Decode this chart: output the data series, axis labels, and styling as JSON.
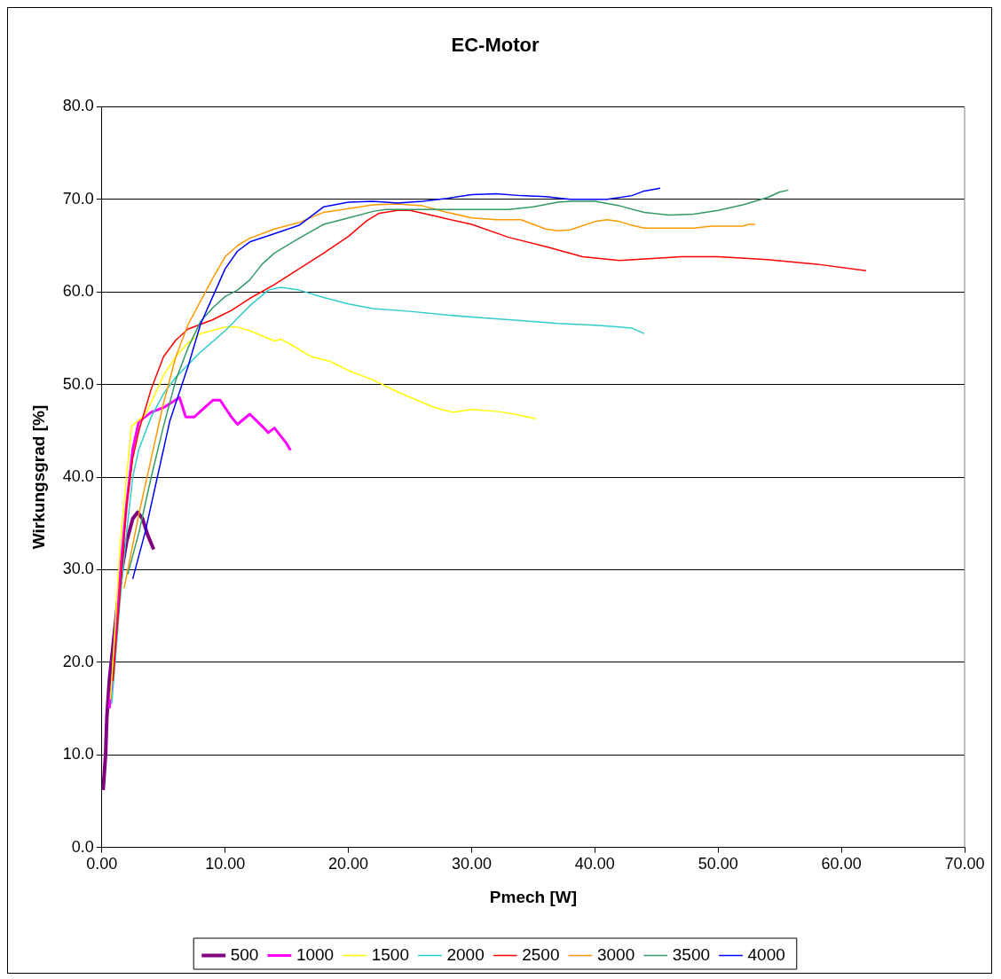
{
  "chart_data": {
    "type": "line",
    "title": "EC-Motor",
    "xlabel": "Pmech [W]",
    "ylabel": "Wirkungsgrad [%]",
    "xlim": [
      0,
      70
    ],
    "xticks": [
      {
        "value": 0,
        "label": "0.00"
      },
      {
        "value": 10,
        "label": "10.00"
      },
      {
        "value": 20,
        "label": "20.00"
      },
      {
        "value": 30,
        "label": "30.00"
      },
      {
        "value": 40,
        "label": "40.00"
      },
      {
        "value": 50,
        "label": "50.00"
      },
      {
        "value": 60,
        "label": "60.00"
      },
      {
        "value": 70,
        "label": "70.00"
      }
    ],
    "ylim": [
      0,
      80
    ],
    "yticks": [
      {
        "value": 0,
        "label": "0.0"
      },
      {
        "value": 10,
        "label": "10.0"
      },
      {
        "value": 20,
        "label": "20.0"
      },
      {
        "value": 30,
        "label": "30.0"
      },
      {
        "value": 40,
        "label": "40.0"
      },
      {
        "value": 50,
        "label": "50.0"
      },
      {
        "value": 60,
        "label": "60.0"
      },
      {
        "value": 70,
        "label": "70.0"
      },
      {
        "value": 80,
        "label": "80.0"
      }
    ],
    "grid": "y",
    "legend": "bottom",
    "marker": "none",
    "line_style": "solid",
    "series": [
      {
        "name": "500",
        "color": "#800080",
        "x": [
          0.1,
          0.3,
          0.4,
          0.6,
          1.0,
          1.5,
          2.0,
          2.5,
          2.9,
          3.3,
          3.7,
          4.2
        ],
        "values": [
          6.2,
          10,
          14,
          18,
          23,
          29,
          33,
          35.5,
          36.2,
          35.5,
          33.8,
          32.2
        ]
      },
      {
        "name": "1000",
        "color": "#ff00ff",
        "x": [
          0.6,
          1,
          1.5,
          2,
          2.5,
          3,
          4,
          5,
          6.3,
          6.8,
          7.5,
          9,
          9.6,
          10.5,
          11,
          12,
          13,
          13.5,
          14,
          15,
          15.3
        ],
        "values": [
          15,
          20,
          30,
          37,
          43,
          46,
          47,
          47.5,
          48.6,
          46.5,
          46.5,
          48.3,
          48.3,
          46.5,
          45.7,
          46.8,
          45.5,
          44.8,
          45.3,
          43.6,
          42.9
        ]
      },
      {
        "name": "1500",
        "color": "#ffff00",
        "x": [
          0.7,
          1.5,
          2.0,
          2.4,
          3.5,
          4.5,
          5,
          6,
          7,
          8,
          10,
          11,
          12,
          14,
          14.5,
          15.5,
          17,
          18.5,
          20,
          22,
          24,
          27,
          28.5,
          30,
          32,
          33.5,
          35.2
        ],
        "values": [
          16,
          33,
          40,
          45.5,
          46.7,
          49.5,
          51,
          53,
          54.5,
          55.5,
          56.2,
          56.2,
          55.8,
          54.7,
          54.9,
          54.2,
          53,
          52.5,
          51.5,
          50.5,
          49.2,
          47.5,
          47,
          47.3,
          47.1,
          46.8,
          46.3
        ]
      },
      {
        "name": "2000",
        "color": "#33cccc",
        "x": [
          0.8,
          1.5,
          2,
          2.5,
          3,
          4,
          5,
          6,
          8,
          10,
          12,
          13.5,
          14.5,
          16,
          18,
          20,
          22,
          25,
          28,
          31,
          34,
          37,
          40,
          42,
          43,
          44
        ],
        "values": [
          15.5,
          27,
          34,
          40,
          43,
          46.5,
          49,
          50.8,
          53.5,
          55.8,
          58.5,
          60.2,
          60.5,
          60.2,
          59.4,
          58.7,
          58.2,
          57.9,
          57.5,
          57.2,
          56.9,
          56.6,
          56.4,
          56.2,
          56.1,
          55.5
        ]
      },
      {
        "name": "2500",
        "color": "#ff0000",
        "x": [
          0.9,
          1.5,
          2,
          2.5,
          3,
          4,
          5,
          6,
          7,
          8,
          9,
          10.5,
          12,
          14,
          16,
          18,
          20,
          21.5,
          22.5,
          24,
          25,
          27,
          30,
          33,
          36,
          39,
          42,
          47,
          50,
          54,
          58,
          62
        ],
        "values": [
          18,
          28,
          37,
          42,
          45,
          49.5,
          53,
          54.8,
          56,
          56.5,
          57,
          58,
          59.3,
          60.8,
          62.5,
          64.2,
          66,
          67.7,
          68.5,
          68.8,
          68.8,
          68.2,
          67.3,
          65.9,
          64.9,
          63.8,
          63.4,
          63.8,
          63.8,
          63.5,
          63,
          62.3
        ]
      },
      {
        "name": "3000",
        "color": "#ff9900",
        "x": [
          1.8,
          3,
          4,
          5,
          6,
          7,
          8,
          9,
          10,
          11,
          12,
          14,
          16,
          18,
          20,
          22,
          24,
          26,
          28,
          30,
          32,
          34,
          35,
          36,
          37,
          38,
          40,
          41,
          42,
          43,
          44,
          48,
          49.5,
          52,
          52.5,
          53
        ],
        "values": [
          28,
          36,
          42,
          48,
          53,
          56.5,
          59,
          61.5,
          63.8,
          65,
          65.8,
          66.8,
          67.5,
          68.6,
          69,
          69.4,
          69.5,
          69.3,
          68.6,
          68,
          67.8,
          67.8,
          67.3,
          66.8,
          66.6,
          66.7,
          67.6,
          67.8,
          67.6,
          67.2,
          66.9,
          66.9,
          67.1,
          67.1,
          67.3,
          67.3
        ]
      },
      {
        "name": "3500",
        "color": "#339966",
        "x": [
          2.1,
          3,
          4,
          5,
          6,
          7,
          8,
          9,
          10,
          11,
          12,
          13,
          14,
          16,
          18,
          20,
          22,
          23,
          25,
          30,
          33,
          35,
          37,
          38,
          40,
          42,
          44,
          46,
          48,
          50,
          52,
          54,
          55,
          55.7
        ],
        "values": [
          29.5,
          34,
          40,
          45.5,
          50.5,
          54,
          56.8,
          58.3,
          59.5,
          60.2,
          61.3,
          63,
          64.2,
          65.8,
          67.3,
          68,
          68.7,
          68.9,
          68.9,
          68.9,
          68.9,
          69.2,
          69.7,
          69.8,
          69.8,
          69.3,
          68.6,
          68.3,
          68.4,
          68.8,
          69.4,
          70.2,
          70.8,
          71
        ]
      },
      {
        "name": "4000",
        "color": "#0000ff",
        "x": [
          2.5,
          3.5,
          4.5,
          5.5,
          7,
          8,
          9,
          10,
          11,
          12,
          14,
          16,
          18,
          20,
          22,
          24,
          26,
          28,
          30,
          32,
          34,
          36,
          38,
          41,
          43,
          44,
          45.3
        ],
        "values": [
          29,
          34,
          40,
          46,
          52,
          56.5,
          59.5,
          62.5,
          64.4,
          65.4,
          66.3,
          67.2,
          69.2,
          69.7,
          69.8,
          69.6,
          69.8,
          70.1,
          70.5,
          70.6,
          70.4,
          70.3,
          70,
          70,
          70.4,
          70.9,
          71.2
        ]
      }
    ]
  }
}
